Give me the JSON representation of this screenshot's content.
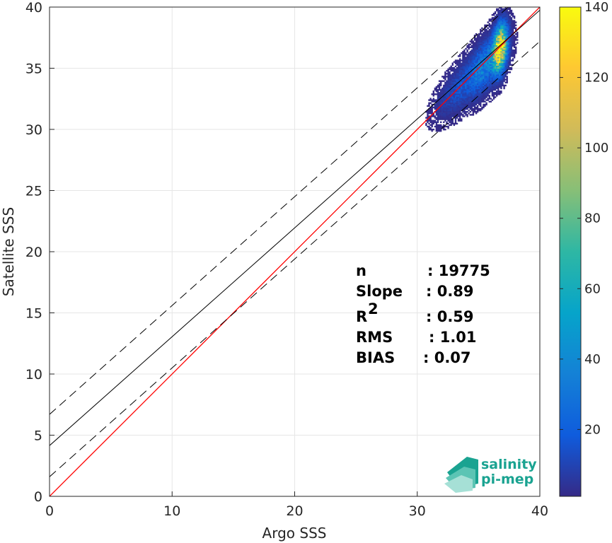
{
  "chart_data": {
    "type": "scatter",
    "subtype": "density-heatmap",
    "xlabel": "Argo SSS",
    "ylabel": "Satellite SSS",
    "xlim": [
      0,
      40
    ],
    "ylim": [
      0,
      40
    ],
    "xticks": [
      "0",
      "10",
      "20",
      "30",
      "40"
    ],
    "yticks": [
      "0",
      "5",
      "10",
      "15",
      "20",
      "25",
      "30",
      "35",
      "40"
    ],
    "grid": true,
    "colorbar": {
      "range": [
        1,
        140
      ],
      "ticks": [
        "20",
        "40",
        "60",
        "80",
        "100",
        "120",
        "140"
      ],
      "colormap": "parula",
      "colors": [
        "#352a87",
        "#0f5cdd",
        "#1481d6",
        "#06a4ca",
        "#2eb7a4",
        "#87bf77",
        "#d1bb59",
        "#fec832",
        "#f9fb0e"
      ]
    },
    "lines": [
      {
        "kind": "identity",
        "color": "#ff0000",
        "style": "solid",
        "intercept": 0.0,
        "slope": 1.0
      },
      {
        "kind": "fit",
        "color": "#000000",
        "style": "solid",
        "intercept": 4.15,
        "slope": 0.89
      },
      {
        "kind": "fit-upper",
        "color": "#000000",
        "style": "dashed",
        "intercept": 6.7,
        "slope": 0.89
      },
      {
        "kind": "fit-lower",
        "color": "#000000",
        "style": "dashed",
        "intercept": 1.6,
        "slope": 0.89
      }
    ],
    "density_clusters": [
      {
        "x": 36.7,
        "y": 36.6,
        "sx": 0.35,
        "sy": 1.1,
        "peak": 140
      },
      {
        "x": 35.6,
        "y": 35.3,
        "sx": 0.9,
        "sy": 1.2,
        "peak": 30
      },
      {
        "x": 34.0,
        "y": 33.8,
        "sx": 1.3,
        "sy": 1.1,
        "peak": 12
      },
      {
        "x": 32.8,
        "y": 33.0,
        "sx": 0.9,
        "sy": 0.9,
        "peak": 5
      }
    ],
    "stats": [
      {
        "label": "n",
        "sep": ": ",
        "value": "19775"
      },
      {
        "label": "Slope",
        "sep": ": ",
        "value": "0.89"
      },
      {
        "label": "R",
        "sup": "2",
        "sep": ": ",
        "value": "0.59"
      },
      {
        "label": "RMS",
        "sep": ": ",
        "value": "1.01"
      },
      {
        "label": "BIAS",
        "sep": ": ",
        "value": "0.07"
      }
    ]
  },
  "logo": {
    "line1": "salinity",
    "line2": "pi-mep",
    "color": "#1aa391"
  }
}
